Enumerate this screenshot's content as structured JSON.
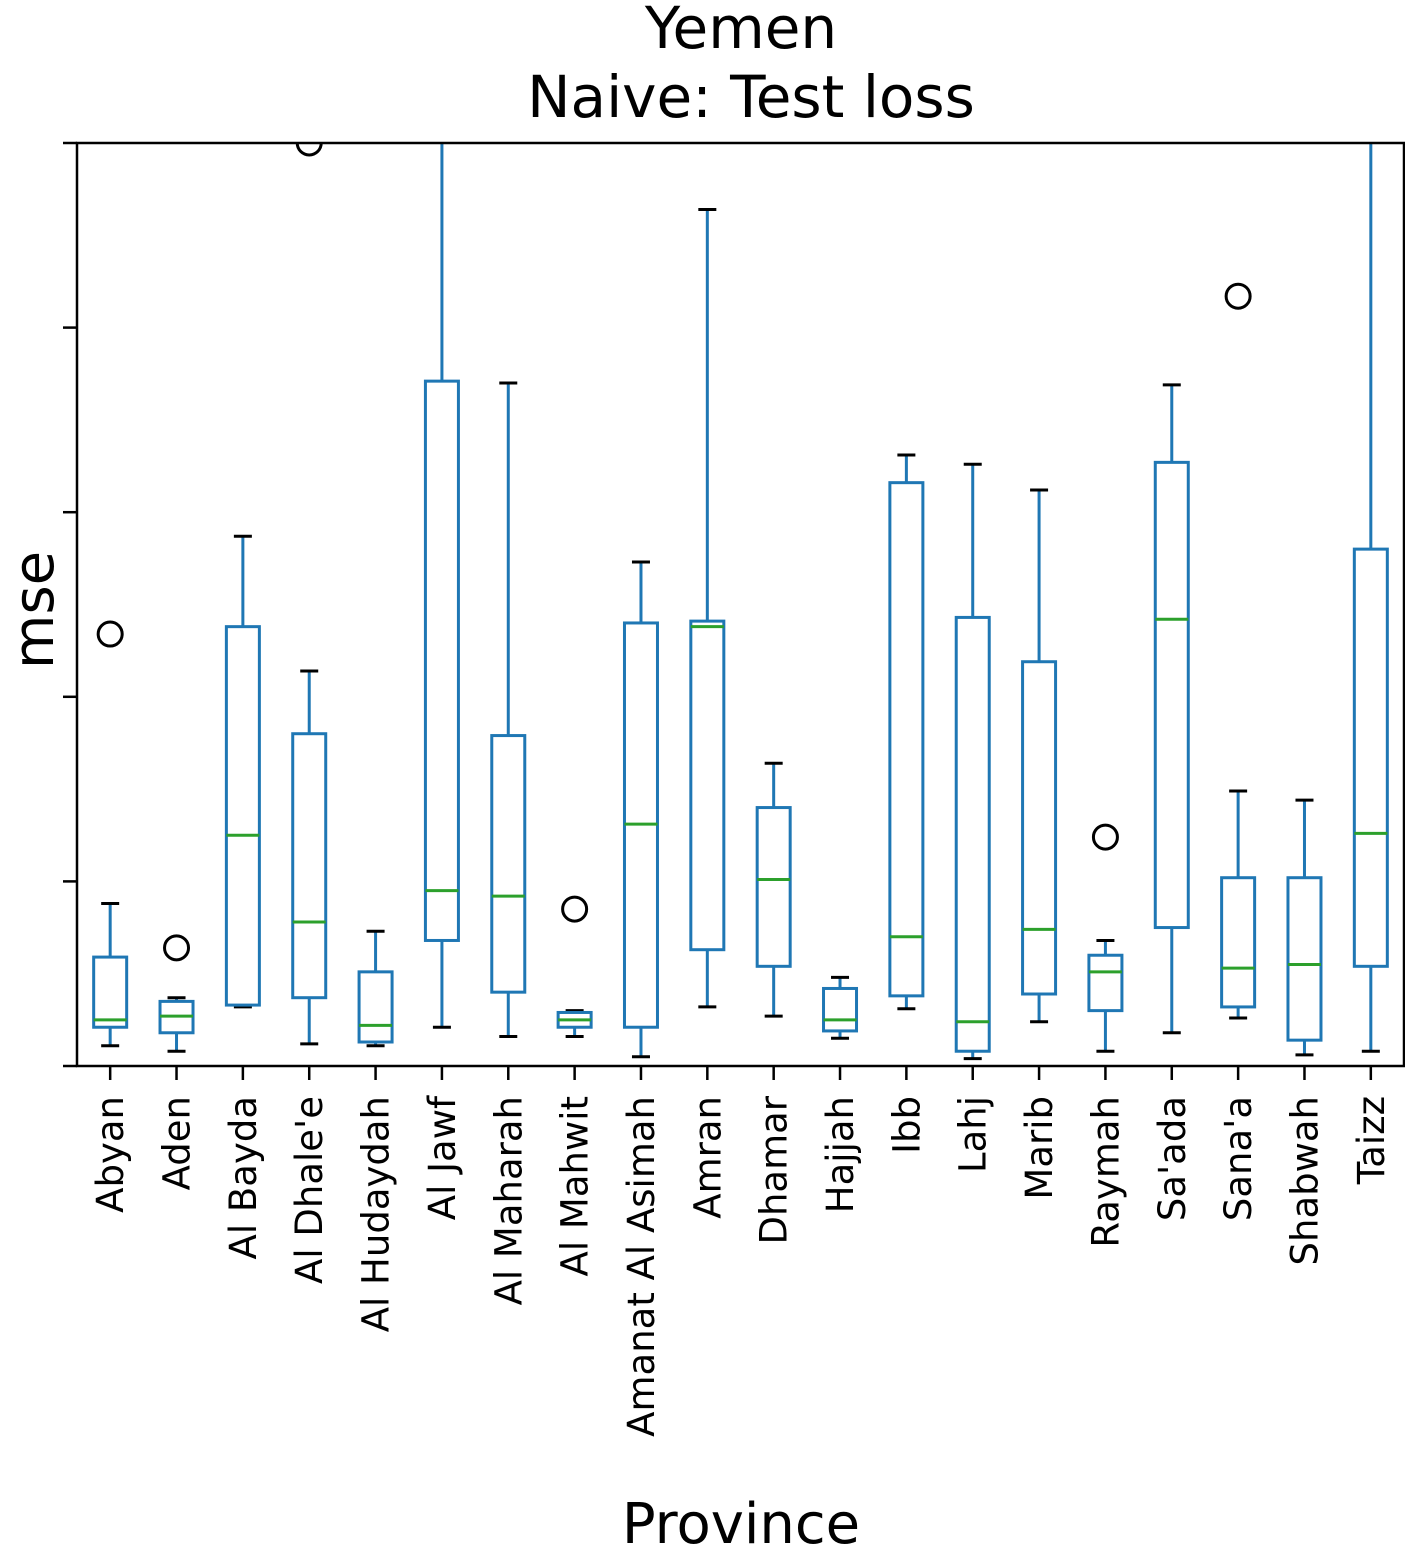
{
  "chart_data": {
    "type": "box",
    "title": "Yemen",
    "subtitle": "Naive: Test loss",
    "xlabel": "Province",
    "ylabel": "mse",
    "ylim": [
      0,
      5
    ],
    "yticks": [
      0,
      1,
      2,
      3,
      4,
      5
    ],
    "y_tick_labels_shown": false,
    "grid": false,
    "colors": {
      "box": "#1f77b4",
      "median": "#2ca02c",
      "whisker_cap": "#000000",
      "outlier": "#000000"
    },
    "categories": [
      "Abyan",
      "Aden",
      "Al Bayda",
      "Al Dhale'e",
      "Al Hudaydah",
      "Al Jawf",
      "Al Maharah",
      "Al Mahwit",
      "Amanat Al Asimah",
      "Amran",
      "Dhamar",
      "Hajjah",
      "Ibb",
      "Lahj",
      "Marib",
      "Raymah",
      "Sa'ada",
      "Sana'a",
      "Shabwah",
      "Taizz"
    ],
    "boxes": [
      {
        "low": 0.11,
        "q1": 0.21,
        "median": 0.25,
        "q3": 0.59,
        "high": 0.88,
        "outliers": [
          2.34
        ]
      },
      {
        "low": 0.08,
        "q1": 0.18,
        "median": 0.27,
        "q3": 0.35,
        "high": 0.37,
        "outliers": [
          0.64
        ]
      },
      {
        "low": 0.32,
        "q1": 0.33,
        "median": 1.25,
        "q3": 2.38,
        "high": 2.87,
        "outliers": []
      },
      {
        "low": 0.12,
        "q1": 0.37,
        "median": 0.78,
        "q3": 1.8,
        "high": 2.14,
        "outliers": [
          5.0
        ]
      },
      {
        "low": 0.11,
        "q1": 0.13,
        "median": 0.22,
        "q3": 0.51,
        "high": 0.73,
        "outliers": []
      },
      {
        "low": 0.21,
        "q1": 0.68,
        "median": 0.95,
        "q3": 3.71,
        "high": 5.3,
        "outliers": []
      },
      {
        "low": 0.16,
        "q1": 0.4,
        "median": 0.92,
        "q3": 1.79,
        "high": 3.7,
        "outliers": []
      },
      {
        "low": 0.16,
        "q1": 0.21,
        "median": 0.25,
        "q3": 0.29,
        "high": 0.3,
        "outliers": [
          0.85
        ]
      },
      {
        "low": 0.05,
        "q1": 0.21,
        "median": 1.31,
        "q3": 2.4,
        "high": 2.73,
        "outliers": []
      },
      {
        "low": 0.32,
        "q1": 0.63,
        "median": 2.38,
        "q3": 2.41,
        "high": 4.64,
        "outliers": []
      },
      {
        "low": 0.27,
        "q1": 0.54,
        "median": 1.01,
        "q3": 1.4,
        "high": 1.64,
        "outliers": []
      },
      {
        "low": 0.15,
        "q1": 0.19,
        "median": 0.25,
        "q3": 0.42,
        "high": 0.48,
        "outliers": []
      },
      {
        "low": 0.31,
        "q1": 0.38,
        "median": 0.7,
        "q3": 3.16,
        "high": 3.31,
        "outliers": []
      },
      {
        "low": 0.04,
        "q1": 0.08,
        "median": 0.24,
        "q3": 2.43,
        "high": 3.26,
        "outliers": []
      },
      {
        "low": 0.24,
        "q1": 0.39,
        "median": 0.74,
        "q3": 2.19,
        "high": 3.12,
        "outliers": []
      },
      {
        "low": 0.08,
        "q1": 0.3,
        "median": 0.51,
        "q3": 0.6,
        "high": 0.68,
        "outliers": [
          1.24
        ]
      },
      {
        "low": 0.18,
        "q1": 0.75,
        "median": 2.42,
        "q3": 3.27,
        "high": 3.69,
        "outliers": []
      },
      {
        "low": 0.26,
        "q1": 0.32,
        "median": 0.53,
        "q3": 1.02,
        "high": 1.49,
        "outliers": [
          4.17
        ]
      },
      {
        "low": 0.06,
        "q1": 0.14,
        "median": 0.55,
        "q3": 1.02,
        "high": 1.44,
        "outliers": []
      },
      {
        "low": 0.08,
        "q1": 0.54,
        "median": 1.26,
        "q3": 2.8,
        "high": 5.3,
        "outliers": []
      }
    ]
  }
}
